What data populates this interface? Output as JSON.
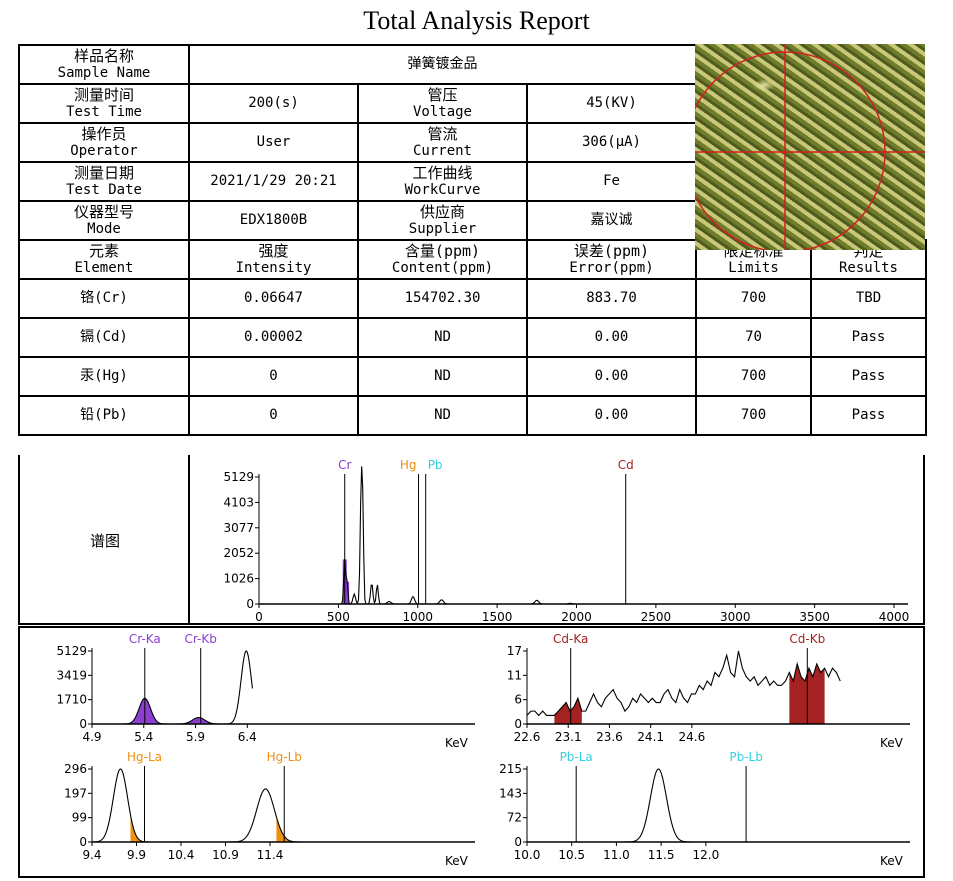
{
  "title": "Total Analysis Report",
  "info": {
    "sample_name": {
      "cn": "样品名称",
      "en": "Sample Name",
      "value": "弹簧镀金品"
    },
    "test_time": {
      "cn": "测量时间",
      "en": "Test Time",
      "value": "200(s)"
    },
    "voltage": {
      "cn": "管压",
      "en": "Voltage",
      "value": "45(KV)"
    },
    "operator": {
      "cn": "操作员",
      "en": "Operator",
      "value": "User"
    },
    "current": {
      "cn": "管流",
      "en": "Current",
      "value": "306(μA)"
    },
    "test_date": {
      "cn": "测量日期",
      "en": "Test Date",
      "value": "2021/1/29 20:21"
    },
    "workcurve": {
      "cn": "工作曲线",
      "en": "WorkCurve",
      "value": "Fe"
    },
    "mode": {
      "cn": "仪器型号",
      "en": "Mode",
      "value": "EDX1800B"
    },
    "supplier": {
      "cn": "供应商",
      "en": "Supplier",
      "value": "嘉议诚"
    }
  },
  "results": {
    "headers": [
      {
        "cn": "元素",
        "en": "Element"
      },
      {
        "cn": "强度",
        "en": "Intensity"
      },
      {
        "cn": "含量(ppm)",
        "en": "Content(ppm)"
      },
      {
        "cn": "误差(ppm)",
        "en": "Error(ppm)"
      },
      {
        "cn": "限定标准",
        "en": "Limits"
      },
      {
        "cn": "判定",
        "en": "Results"
      }
    ],
    "rows": [
      [
        "铬(Cr)",
        "0.06647",
        "154702.30",
        "883.70",
        "700",
        "TBD"
      ],
      [
        "镉(Cd)",
        "0.00002",
        "ND",
        "0.00",
        "70",
        "Pass"
      ],
      [
        "汞(Hg)",
        "0",
        "ND",
        "0.00",
        "700",
        "Pass"
      ],
      [
        "铅(Pb)",
        "0",
        "ND",
        "0.00",
        "700",
        "Pass"
      ]
    ]
  },
  "spectrum_label": "谱图",
  "colors": {
    "Cr": "#8a3fd1",
    "Hg": "#f0900f",
    "Pb": "#33d0e0",
    "Cd": "#a52222"
  },
  "chart_data": [
    {
      "type": "line",
      "name": "spectrum",
      "xlim": [
        0,
        4000
      ],
      "ylim": [
        0,
        5129
      ],
      "xticks": [
        "0",
        "500",
        "1000",
        "1500",
        "2000",
        "2500",
        "3000",
        "3500",
        "4000"
      ],
      "yticks": [
        "0",
        "1026",
        "2052",
        "3077",
        "4103",
        "5129"
      ],
      "peaks": [
        [
          540,
          1800,
          6,
          "Cr"
        ],
        [
          555,
          900,
          5,
          "Cr"
        ],
        [
          600,
          400,
          8,
          null
        ],
        [
          645,
          5129,
          7,
          null
        ],
        [
          655,
          2300,
          5,
          null
        ],
        [
          710,
          850,
          7,
          null
        ],
        [
          745,
          800,
          6,
          null
        ],
        [
          820,
          100,
          12,
          null
        ],
        [
          970,
          300,
          10,
          null
        ],
        [
          1150,
          170,
          12,
          null
        ],
        [
          1750,
          150,
          12,
          null
        ],
        [
          1960,
          30,
          10,
          null
        ]
      ],
      "markers": [
        {
          "label": "Cr",
          "x": 540,
          "el": "Cr"
        },
        {
          "label": "Hg",
          "x": 1005,
          "el": "Hg"
        },
        {
          "label": "Pb",
          "x": 1050,
          "el": "Pb"
        },
        {
          "label": "Cd",
          "x": 2310,
          "el": "Cd"
        }
      ]
    },
    {
      "type": "line",
      "name": "cr",
      "xlabel": "KeV",
      "xlim": [
        4.9,
        6.6
      ],
      "ylim": [
        0,
        5129
      ],
      "xticks": [
        "4.9",
        "5.4",
        "5.9",
        "6.4"
      ],
      "yticks": [
        "0",
        "1710",
        "3419",
        "5129"
      ],
      "peaks": [
        [
          5.41,
          1800,
          0.055
        ],
        [
          5.93,
          450,
          0.06
        ],
        [
          6.39,
          5129,
          0.05
        ]
      ],
      "fill_ranges": [
        [
          5.2,
          5.62
        ],
        [
          5.75,
          6.1
        ]
      ],
      "fill_el": "Cr",
      "xmax_curve": 6.45,
      "markers": [
        {
          "label": "Cr-Ka",
          "x": 5.41,
          "el": "Cr"
        },
        {
          "label": "Cr-Kb",
          "x": 5.95,
          "el": "Cr"
        }
      ]
    },
    {
      "type": "line",
      "name": "cd",
      "xlabel": "KeV",
      "xlim": [
        22.6,
        26.7
      ],
      "ylim": [
        0,
        17
      ],
      "xticks": [
        "22.6",
        "23.1",
        "23.6",
        "24.1",
        "24.6"
      ],
      "yticks": [
        "0",
        "6",
        "11",
        "17"
      ],
      "values": [
        2,
        3,
        3,
        2,
        3,
        2,
        2,
        2,
        3,
        4,
        5,
        3,
        4,
        6,
        3,
        3,
        5,
        7,
        5,
        4,
        6,
        7,
        8,
        6,
        5,
        3,
        4,
        6,
        5,
        7,
        6,
        5,
        6,
        5,
        5,
        7,
        8,
        6,
        5,
        8,
        6,
        5,
        7,
        7,
        9,
        8,
        10,
        9,
        12,
        11,
        13,
        16,
        12,
        11,
        17,
        13,
        11,
        10,
        11,
        9,
        10,
        11,
        9,
        10,
        9,
        9,
        10,
        12,
        10,
        14,
        11,
        10,
        13,
        11,
        14,
        12,
        13,
        11,
        13,
        12,
        10
      ],
      "fill_ranges": [
        [
          22.9,
          23.3
        ],
        [
          25.75,
          26.25
        ]
      ],
      "fill_el": "Cd",
      "markers": [
        {
          "label": "Cd-Ka",
          "x": 23.13,
          "el": "Cd"
        },
        {
          "label": "Cd-Kb",
          "x": 26.0,
          "el": "Cd"
        }
      ]
    },
    {
      "type": "line",
      "name": "hg",
      "xlabel": "KeV",
      "xlim": [
        9.4,
        12.4
      ],
      "ylim": [
        0,
        296
      ],
      "xticks": [
        "9.4",
        "9.9",
        "10.4",
        "10.9",
        "11.4"
      ],
      "yticks": [
        "0",
        "99",
        "197",
        "296"
      ],
      "peaks": [
        [
          9.72,
          296,
          0.08
        ],
        [
          11.35,
          215,
          0.1
        ]
      ],
      "fill_ranges": [
        [
          9.83,
          9.99
        ],
        [
          11.47,
          11.75
        ]
      ],
      "fill_el": "Hg",
      "xmax_curve": 11.8,
      "markers": [
        {
          "label": "Hg-La",
          "x": 9.99,
          "el": "Hg"
        },
        {
          "label": "Hg-Lb",
          "x": 11.56,
          "el": "Hg"
        }
      ]
    },
    {
      "type": "line",
      "name": "pb",
      "xlabel": "KeV",
      "xlim": [
        10.0,
        13.5
      ],
      "ylim": [
        0,
        215
      ],
      "xticks": [
        "10.0",
        "10.5",
        "11.0",
        "11.5",
        "12.0"
      ],
      "yticks": [
        "0",
        "72",
        "143",
        "215"
      ],
      "peaks": [
        [
          11.47,
          215,
          0.09
        ]
      ],
      "fill_ranges": [],
      "fill_el": "Pb",
      "xmax_curve": 12.5,
      "markers": [
        {
          "label": "Pb-La",
          "x": 10.55,
          "el": "Pb"
        },
        {
          "label": "Pb-Lb",
          "x": 12.45,
          "el": "Pb"
        }
      ]
    }
  ]
}
